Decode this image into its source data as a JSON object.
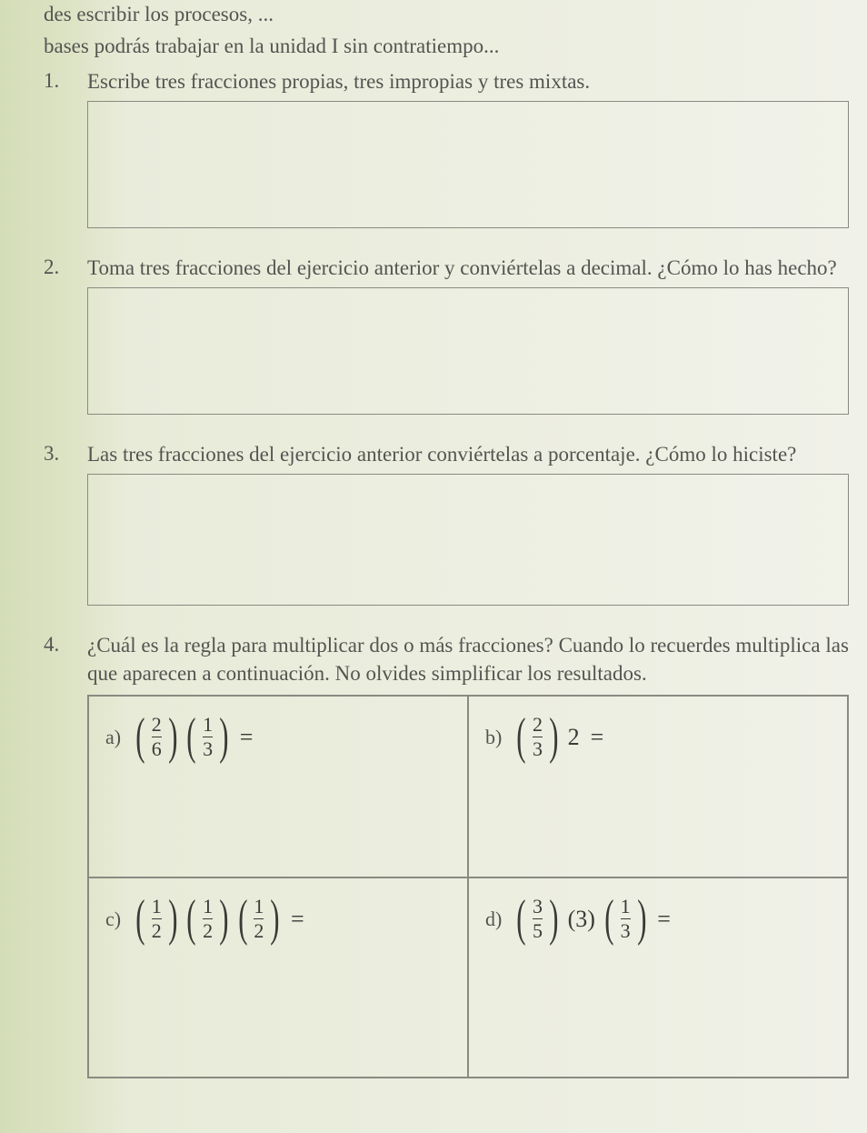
{
  "intro": {
    "line1": "des escribir los procesos, ...",
    "line2": "bases podrás trabajar en la unidad I sin contratiempo..."
  },
  "questions": {
    "q1": {
      "num": "1.",
      "text": "Escribe tres fracciones propias, tres impropias y tres mixtas."
    },
    "q2": {
      "num": "2.",
      "text": "Toma tres fracciones del ejercicio anterior y conviértelas a decimal. ¿Cómo lo has hecho?"
    },
    "q3": {
      "num": "3.",
      "text": "Las tres fracciones del ejercicio anterior conviértelas a porcentaje. ¿Cómo lo hiciste?"
    },
    "q4": {
      "num": "4.",
      "text": "¿Cuál es la regla para multiplicar dos o más fracciones? Cuando lo recuerdes multiplica las que aparecen a continuación. No olvides simplificar los resultados."
    }
  },
  "cells": {
    "a": {
      "label": "a)",
      "f1n": "2",
      "f1d": "6",
      "f2n": "1",
      "f2d": "3",
      "eq": "="
    },
    "b": {
      "label": "b)",
      "f1n": "2",
      "f1d": "3",
      "whole": "2",
      "eq": "="
    },
    "c": {
      "label": "c)",
      "f1n": "1",
      "f1d": "2",
      "f2n": "1",
      "f2d": "2",
      "f3n": "1",
      "f3d": "2",
      "eq": "="
    },
    "d": {
      "label": "d)",
      "f1n": "3",
      "f1d": "5",
      "whole": "(3)",
      "f2n": "1",
      "f2d": "3",
      "eq": "="
    }
  },
  "paren_l": "(",
  "paren_r": ")"
}
